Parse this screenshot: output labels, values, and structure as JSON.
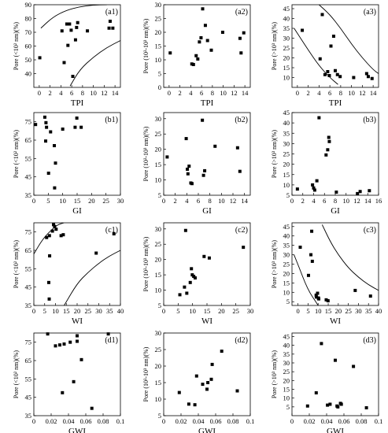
{
  "chart_data": [
    {
      "id": "a1",
      "type": "scatter",
      "panel_label": "(a1)",
      "xlabel": "TPI",
      "ylabel": "Pore (<10² nm)(%)",
      "xlim": [
        -1,
        15
      ],
      "ylim": [
        30,
        90
      ],
      "xticks": [
        0,
        2,
        4,
        6,
        8,
        10,
        12,
        14
      ],
      "yticks": [
        40,
        50,
        60,
        70,
        80,
        90
      ],
      "points": [
        [
          0.1,
          51.5
        ],
        [
          4.2,
          71
        ],
        [
          5.1,
          76
        ],
        [
          5.3,
          60.5
        ],
        [
          5.6,
          76
        ],
        [
          5.9,
          71.5
        ],
        [
          6.2,
          38
        ],
        [
          6.7,
          64.5
        ],
        [
          6.9,
          73.5
        ],
        [
          7.1,
          77
        ],
        [
          4.6,
          48
        ],
        [
          8.9,
          71
        ],
        [
          12.9,
          73
        ],
        [
          13.1,
          78
        ],
        [
          13.6,
          73
        ]
      ],
      "envelopes": [
        [
          [
            0.3,
            73
          ],
          [
            2.5,
            81
          ],
          [
            5,
            86
          ],
          [
            7.5,
            88.5
          ],
          [
            10,
            89.8
          ],
          [
            12.5,
            90
          ]
        ],
        [
          [
            5.7,
            31
          ],
          [
            7.5,
            43
          ],
          [
            10,
            52
          ],
          [
            12.5,
            59
          ],
          [
            15,
            64
          ]
        ]
      ]
    },
    {
      "id": "a2",
      "type": "scatter",
      "panel_label": "(a2)",
      "xlabel": "TPI",
      "ylabel": "Pore (10²-10³ nm)(%)",
      "xlim": [
        -1,
        15
      ],
      "ylim": [
        0,
        30
      ],
      "xticks": [
        0,
        2,
        4,
        6,
        8,
        10,
        12,
        14
      ],
      "yticks": [
        0,
        5,
        10,
        15,
        20,
        25,
        30
      ],
      "points": [
        [
          0.2,
          12.5
        ],
        [
          4.2,
          8.5
        ],
        [
          4.5,
          8.3
        ],
        [
          5.0,
          11.5
        ],
        [
          5.3,
          10.3
        ],
        [
          5.6,
          16.5
        ],
        [
          5.9,
          18
        ],
        [
          6.2,
          28.5
        ],
        [
          6.7,
          22.5
        ],
        [
          7.1,
          17
        ],
        [
          7.8,
          13.5
        ],
        [
          9.9,
          20
        ],
        [
          13.1,
          17.8
        ],
        [
          13.3,
          12.5
        ],
        [
          13.8,
          19.8
        ]
      ]
    },
    {
      "id": "a3",
      "type": "scatter",
      "panel_label": "(a3)",
      "xlabel": "TPI",
      "ylabel": "Pore (>10³ nm)(%)",
      "xlim": [
        -1,
        15
      ],
      "ylim": [
        5,
        47
      ],
      "xticks": [
        0,
        2,
        4,
        6,
        8,
        10,
        12,
        14
      ],
      "yticks": [
        10,
        15,
        20,
        25,
        30,
        35,
        40,
        45
      ],
      "points": [
        [
          0.9,
          34
        ],
        [
          4.2,
          19.5
        ],
        [
          4.6,
          42
        ],
        [
          5.1,
          11.5
        ],
        [
          5.6,
          13
        ],
        [
          5.9,
          11
        ],
        [
          6.2,
          26
        ],
        [
          6.7,
          31
        ],
        [
          7.0,
          13.5
        ],
        [
          7.4,
          11.5
        ],
        [
          7.9,
          10.5
        ],
        [
          10.4,
          10
        ],
        [
          12.8,
          12
        ],
        [
          13.1,
          10.5
        ],
        [
          13.8,
          9.5
        ]
      ],
      "envelopes": [
        [
          [
            -0.6,
            35
          ],
          [
            2,
            24
          ],
          [
            4,
            16
          ],
          [
            6,
            10
          ],
          [
            7.5,
            6.5
          ]
        ],
        [
          [
            4,
            47
          ],
          [
            6,
            42
          ],
          [
            8,
            35
          ],
          [
            10,
            27
          ],
          [
            12,
            20
          ],
          [
            14,
            14
          ],
          [
            15,
            12
          ]
        ]
      ]
    },
    {
      "id": "b1",
      "type": "scatter",
      "panel_label": "(b1)",
      "xlabel": "GI",
      "ylabel": "Pore (<10² nm)(%)",
      "xlim": [
        0,
        30
      ],
      "ylim": [
        35,
        80
      ],
      "xticks": [
        0,
        5,
        10,
        15,
        20,
        25,
        30
      ],
      "yticks": [
        35,
        45,
        55,
        65,
        75
      ],
      "points": [
        [
          0.6,
          73.5
        ],
        [
          3.8,
          77.5
        ],
        [
          4.2,
          74.5
        ],
        [
          4.4,
          72
        ],
        [
          5.8,
          69.5
        ],
        [
          4.1,
          64.5
        ],
        [
          5.1,
          47
        ],
        [
          7.1,
          62
        ],
        [
          7.5,
          52.5
        ],
        [
          7.2,
          39
        ],
        [
          10.0,
          71
        ],
        [
          14.3,
          72
        ],
        [
          14.9,
          77
        ],
        [
          16.4,
          72
        ]
      ]
    },
    {
      "id": "b2",
      "type": "scatter",
      "panel_label": "(b2)",
      "xlabel": "GI",
      "ylabel": "Pore (10²-10³ nm)(%)",
      "xlim": [
        0,
        15
      ],
      "ylim": [
        5,
        32
      ],
      "xticks": [
        0,
        2,
        4,
        6,
        8,
        10,
        12,
        14
      ],
      "yticks": [
        5,
        10,
        15,
        20,
        25,
        30
      ],
      "points": [
        [
          0.6,
          17.5
        ],
        [
          3.9,
          23.5
        ],
        [
          4.1,
          13.5
        ],
        [
          4.2,
          12
        ],
        [
          4.4,
          14.5
        ],
        [
          4.7,
          9
        ],
        [
          4.9,
          8.8
        ],
        [
          6.7,
          29.5
        ],
        [
          6.9,
          11.5
        ],
        [
          7.1,
          13
        ],
        [
          8.9,
          21
        ],
        [
          12.8,
          20.5
        ],
        [
          13.2,
          12.8
        ]
      ]
    },
    {
      "id": "b3",
      "type": "scatter",
      "panel_label": "(b3)",
      "xlabel": "GI",
      "ylabel": "Pore (>10³ nm)(%)",
      "xlim": [
        0,
        16
      ],
      "ylim": [
        5,
        45
      ],
      "xticks": [
        0,
        2,
        4,
        6,
        8,
        10,
        12,
        14,
        16
      ],
      "yticks": [
        5,
        10,
        15,
        20,
        25,
        30,
        35,
        40,
        45
      ],
      "points": [
        [
          1.0,
          8
        ],
        [
          3.8,
          10
        ],
        [
          4.0,
          8.5
        ],
        [
          4.2,
          7.5
        ],
        [
          4.6,
          12
        ],
        [
          5.0,
          42.5
        ],
        [
          6.3,
          24.5
        ],
        [
          6.6,
          27
        ],
        [
          6.9,
          31
        ],
        [
          6.8,
          33
        ],
        [
          8.2,
          6.5
        ],
        [
          12.1,
          5.8
        ],
        [
          12.6,
          6.8
        ],
        [
          14.3,
          7.2
        ]
      ]
    },
    {
      "id": "c1",
      "type": "scatter",
      "panel_label": "(c1)",
      "xlabel": "WI",
      "ylabel": "Pore (<10² nm)(%)",
      "xlim": [
        0,
        40
      ],
      "ylim": [
        35,
        80
      ],
      "xticks": [
        0,
        5,
        10,
        15,
        20,
        25,
        30,
        35,
        40
      ],
      "yticks": [
        35,
        45,
        55,
        65,
        75
      ],
      "points": [
        [
          5.9,
          72
        ],
        [
          7.2,
          73
        ],
        [
          8.6,
          75.5
        ],
        [
          9.1,
          79
        ],
        [
          9.6,
          78
        ],
        [
          10.3,
          76.5
        ],
        [
          7.3,
          62
        ],
        [
          6.9,
          47.5
        ],
        [
          7.1,
          38.5
        ],
        [
          12.6,
          73
        ],
        [
          13.6,
          73.5
        ],
        [
          28.8,
          63.5
        ],
        [
          37.0,
          74
        ]
      ],
      "envelopes": [
        [
          [
            0,
            63
          ],
          [
            4,
            71
          ],
          [
            8,
            76
          ],
          [
            11,
            79
          ],
          [
            14,
            80
          ]
        ],
        [
          [
            14,
            35
          ],
          [
            20,
            47
          ],
          [
            25,
            53
          ],
          [
            30,
            58
          ],
          [
            35,
            62
          ],
          [
            40,
            65
          ]
        ]
      ]
    },
    {
      "id": "c2",
      "type": "scatter",
      "panel_label": "(c2)",
      "xlabel": "WI",
      "ylabel": "Pore (10²-10³ nm)(%)",
      "xlim": [
        0,
        30
      ],
      "ylim": [
        5,
        32
      ],
      "xticks": [
        0,
        5,
        10,
        15,
        20,
        25,
        30
      ],
      "yticks": [
        5,
        10,
        15,
        20,
        25,
        30
      ],
      "points": [
        [
          5.6,
          8.5
        ],
        [
          7.2,
          11
        ],
        [
          7.6,
          29.5
        ],
        [
          8.0,
          9
        ],
        [
          9.2,
          12.5
        ],
        [
          9.6,
          17
        ],
        [
          9.9,
          15
        ],
        [
          10.4,
          14.5
        ],
        [
          10.9,
          14
        ],
        [
          14.0,
          21
        ],
        [
          15.8,
          20.5
        ],
        [
          27.6,
          24
        ]
      ]
    },
    {
      "id": "c3",
      "type": "scatter",
      "panel_label": "(c3)",
      "xlabel": "WI",
      "ylabel": "Pore (>10³ nm)(%)",
      "xlim": [
        -3,
        40
      ],
      "ylim": [
        3,
        47
      ],
      "xticks": [
        0,
        5,
        10,
        15,
        20,
        25,
        30,
        35,
        40
      ],
      "yticks": [
        5,
        10,
        15,
        20,
        25,
        30,
        35,
        40,
        45
      ],
      "points": [
        [
          1.1,
          34
        ],
        [
          5.2,
          19
        ],
        [
          6.4,
          30
        ],
        [
          6.8,
          42.5
        ],
        [
          7.1,
          26.5
        ],
        [
          9.0,
          8.5
        ],
        [
          9.1,
          7.5
        ],
        [
          9.7,
          9.5
        ],
        [
          10.1,
          7
        ],
        [
          10.3,
          6.5
        ],
        [
          14.0,
          6
        ],
        [
          14.9,
          5.5
        ],
        [
          28.4,
          11
        ],
        [
          36.0,
          8
        ]
      ],
      "envelopes": [
        [
          [
            -2,
            30
          ],
          [
            1,
            22
          ],
          [
            3.5,
            15
          ],
          [
            6,
            9.5
          ],
          [
            8.5,
            5.5
          ],
          [
            10,
            3
          ]
        ],
        [
          [
            12,
            46
          ],
          [
            16,
            37
          ],
          [
            20,
            30
          ],
          [
            25,
            23
          ],
          [
            30,
            18
          ],
          [
            35,
            14
          ],
          [
            40,
            11
          ]
        ]
      ]
    },
    {
      "id": "d1",
      "type": "scatter",
      "panel_label": "(d1)",
      "xlabel": "GWI",
      "ylabel": "Pore (<10² nm)(%)",
      "xlim": [
        0,
        0.1
      ],
      "ylim": [
        35,
        80
      ],
      "xticks": [
        0,
        0.02,
        0.04,
        0.06,
        0.08,
        0.1
      ],
      "xticklabels": [
        "0",
        "0.02",
        "0.04",
        "0.06",
        "0.08",
        "0.1"
      ],
      "yticks": [
        35,
        45,
        55,
        65,
        75
      ],
      "points": [
        [
          0.016,
          79.5
        ],
        [
          0.025,
          73
        ],
        [
          0.03,
          73.5
        ],
        [
          0.033,
          47.5
        ],
        [
          0.035,
          74
        ],
        [
          0.042,
          75
        ],
        [
          0.046,
          53.5
        ],
        [
          0.05,
          78.5
        ],
        [
          0.05,
          75.5
        ],
        [
          0.055,
          65.5
        ],
        [
          0.067,
          39
        ],
        [
          0.086,
          79.5
        ]
      ]
    },
    {
      "id": "d2",
      "type": "scatter",
      "panel_label": "(d2)",
      "xlabel": "GWI",
      "ylabel": "Pore (10²-10³ nm)(%)",
      "xlim": [
        0,
        0.1
      ],
      "ylim": [
        5,
        30
      ],
      "xticks": [
        0,
        0.02,
        0.04,
        0.06,
        0.08,
        0.1
      ],
      "xticklabels": [
        "0",
        "0.02",
        "0.04",
        "0.06",
        "0.08",
        "0.1"
      ],
      "yticks": [
        5,
        10,
        15,
        20,
        25,
        30
      ],
      "points": [
        [
          0.018,
          12
        ],
        [
          0.029,
          8.5
        ],
        [
          0.036,
          8.3
        ],
        [
          0.038,
          17
        ],
        [
          0.045,
          14.5
        ],
        [
          0.05,
          13
        ],
        [
          0.051,
          15
        ],
        [
          0.055,
          16
        ],
        [
          0.056,
          20.5
        ],
        [
          0.067,
          24.5
        ],
        [
          0.085,
          12.5
        ]
      ]
    },
    {
      "id": "d3",
      "type": "scatter",
      "panel_label": "(d3)",
      "xlabel": "GWI",
      "ylabel": "Pore (>10³ nm)(%)",
      "xlim": [
        0,
        0.1
      ],
      "ylim": [
        0,
        47
      ],
      "xticks": [
        0,
        0.02,
        0.04,
        0.06,
        0.08,
        0.1
      ],
      "xticklabels": [
        "0",
        "0.02",
        "0.04",
        "0.06",
        "0.08",
        "0.1"
      ],
      "yticks": [
        5,
        10,
        15,
        20,
        25,
        30,
        35,
        40,
        45
      ],
      "points": [
        [
          0.018,
          5.5
        ],
        [
          0.028,
          13
        ],
        [
          0.034,
          41
        ],
        [
          0.041,
          6
        ],
        [
          0.044,
          6.5
        ],
        [
          0.05,
          31.5
        ],
        [
          0.052,
          5.5
        ],
        [
          0.053,
          5
        ],
        [
          0.056,
          7
        ],
        [
          0.057,
          6.5
        ],
        [
          0.071,
          28
        ],
        [
          0.086,
          4.5
        ]
      ]
    }
  ]
}
